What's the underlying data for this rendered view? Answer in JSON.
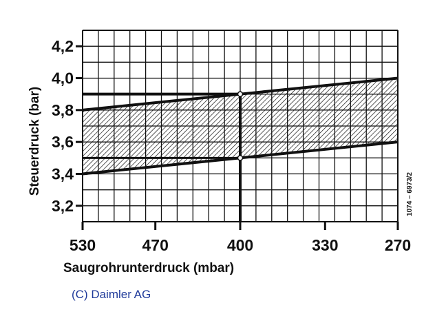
{
  "chart_data": {
    "type": "area",
    "title": "",
    "xlabel": "Saugrohrunterdruck (mbar)",
    "ylabel": "Steuerdruck (bar)",
    "xlim": [
      530,
      270
    ],
    "ylim": [
      3.1,
      4.3
    ],
    "x_ticks": [
      530,
      470,
      400,
      330,
      270
    ],
    "x_tick_labels": [
      "530",
      "470",
      "400",
      "330",
      "270"
    ],
    "y_ticks": [
      3.2,
      3.4,
      3.6,
      3.8,
      4.0,
      4.2
    ],
    "y_tick_labels": [
      "3,2",
      "3,4",
      "3,6",
      "3,8",
      "4,0",
      "4,2"
    ],
    "grid": true,
    "band": {
      "upper": [
        {
          "x": 530,
          "y": 3.8
        },
        {
          "x": 270,
          "y": 4.0
        }
      ],
      "lower": [
        {
          "x": 530,
          "y": 3.4
        },
        {
          "x": 270,
          "y": 3.6
        }
      ]
    },
    "reference": {
      "x": 400,
      "y_upper": 3.9,
      "y_lower": 3.5
    },
    "side_note": "1074 – 6973/2"
  },
  "copyright": "(C) Daimler AG"
}
